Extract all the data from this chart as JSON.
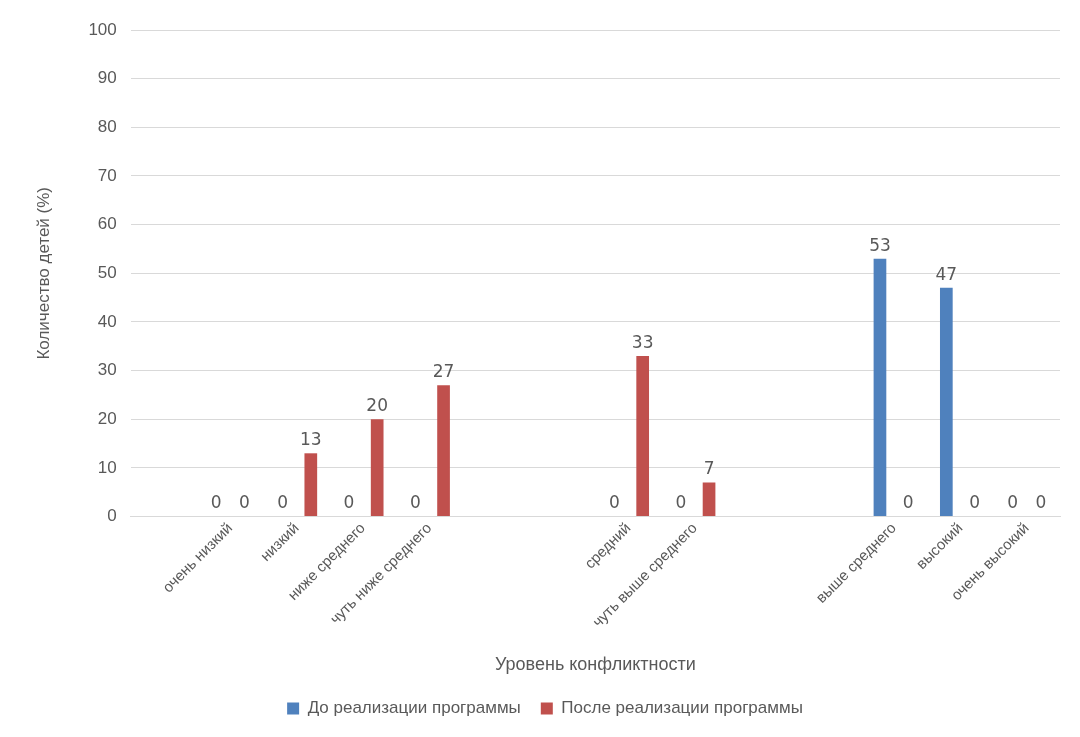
{
  "chart_data": {
    "type": "bar",
    "xlabel": "Уровень конфликтности",
    "ylabel": "Количество детей (%)",
    "categories": [
      null,
      "очень низкий",
      "низкий",
      "ниже среднего",
      "чуть ниже среднего",
      null,
      null,
      "средний",
      "чуть выше среднего",
      null,
      null,
      "выше среднего",
      "высокий",
      "очень высокий"
    ],
    "series": [
      {
        "name": "До реализации программы",
        "color": "#4f81bd",
        "values": [
          null,
          0,
          0,
          0,
          0,
          null,
          null,
          0,
          0,
          null,
          null,
          53,
          47,
          0
        ]
      },
      {
        "name": "После реализации программы",
        "color": "#c0504d",
        "values": [
          null,
          0,
          13,
          20,
          27,
          null,
          null,
          33,
          7,
          null,
          null,
          0,
          0,
          0
        ]
      }
    ],
    "ylim": [
      0,
      100
    ],
    "yticks": [
      0,
      10,
      20,
      30,
      40,
      50,
      60,
      70,
      80,
      90,
      100
    ],
    "grid": "y",
    "legend": "bottom",
    "data_labels": true
  }
}
